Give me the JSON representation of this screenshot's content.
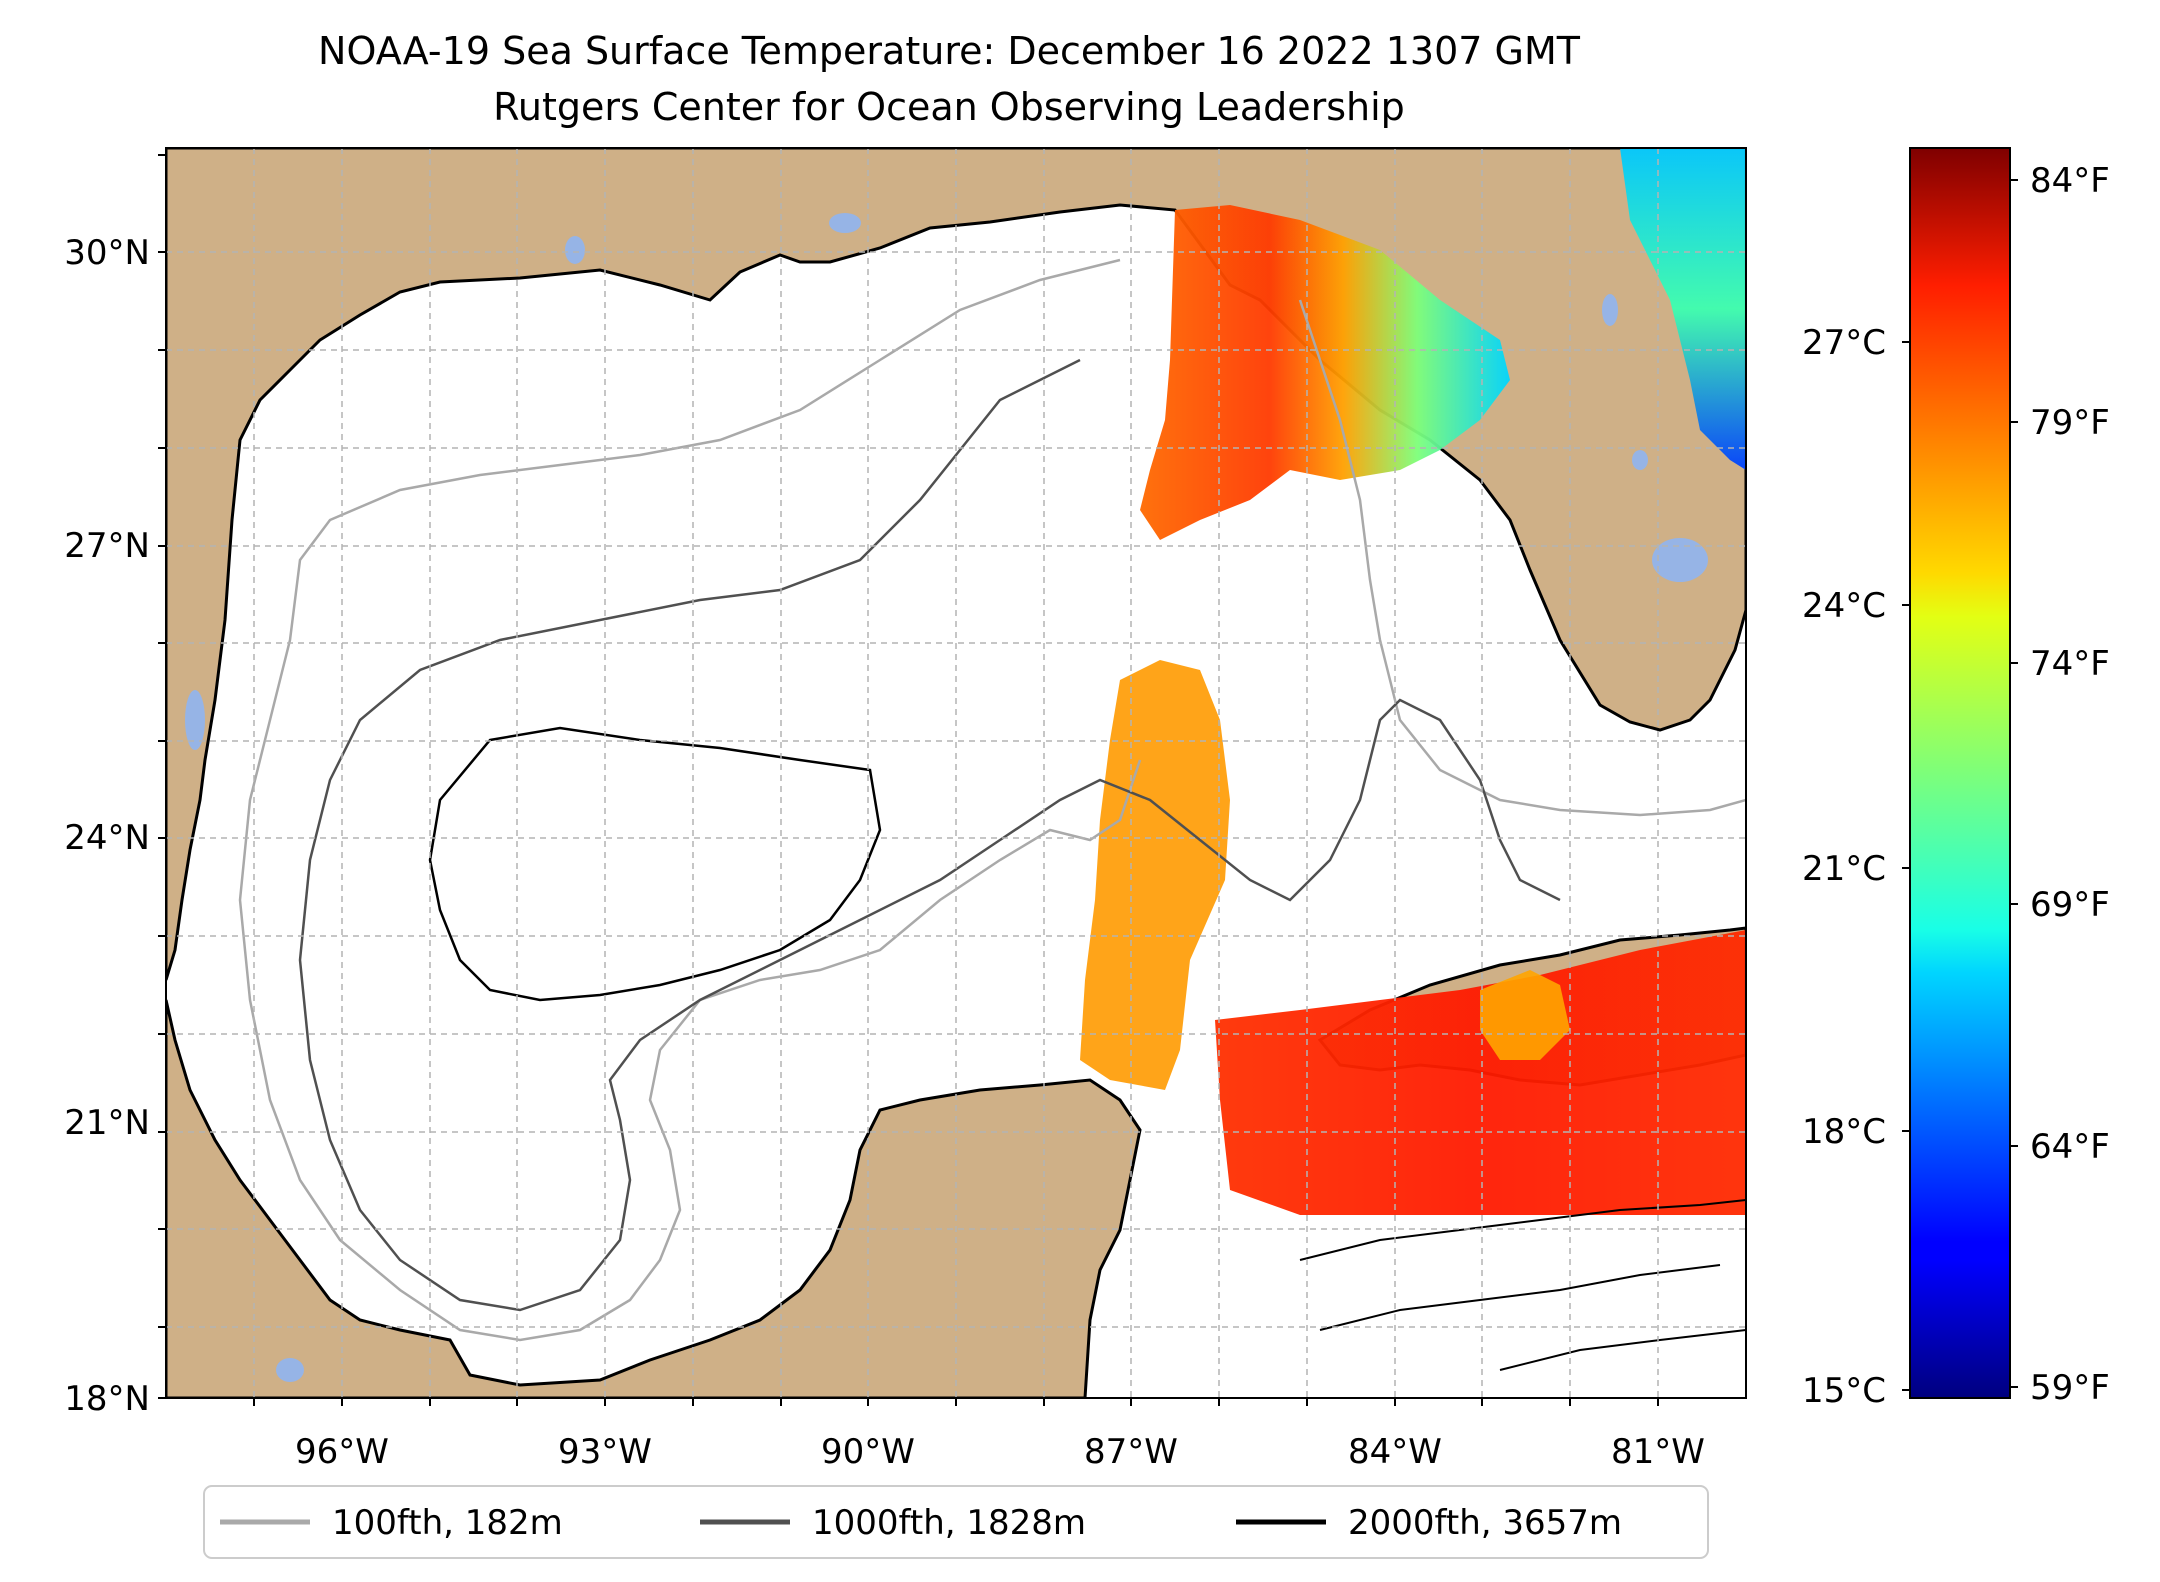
{
  "title": {
    "line1": "NOAA-19 Sea Surface Temperature: December 16 2022 1307 GMT",
    "line2": "Rutgers Center for Ocean Observing Leadership"
  },
  "map": {
    "lon_range": [
      -98,
      -80
    ],
    "lat_range": [
      18,
      31
    ],
    "lon_ticks": [
      "96°W",
      "93°W",
      "90°W",
      "87°W",
      "84°W",
      "81°W"
    ],
    "lat_ticks": [
      "18°N",
      "21°N",
      "24°N",
      "27°N",
      "30°N"
    ],
    "colors": {
      "land": "#cfb087",
      "lakes": "#96b4e6",
      "ocean": "#ffffff",
      "coastline": "#000000",
      "grid": "#b4b4b4"
    }
  },
  "colorbar": {
    "colormap": "jet",
    "celsius_ticks": [
      "27°C",
      "24°C",
      "21°C",
      "18°C",
      "15°C"
    ],
    "fahrenheit_ticks": [
      "84°F",
      "79°F",
      "74°F",
      "69°F",
      "64°F",
      "59°F"
    ]
  },
  "legend": {
    "items": [
      {
        "label": "100fth, 182m",
        "color": "#a9a9a9"
      },
      {
        "label": "1000fth, 1828m",
        "color": "#505050"
      },
      {
        "label": "2000fth, 3657m",
        "color": "#000000"
      }
    ]
  }
}
